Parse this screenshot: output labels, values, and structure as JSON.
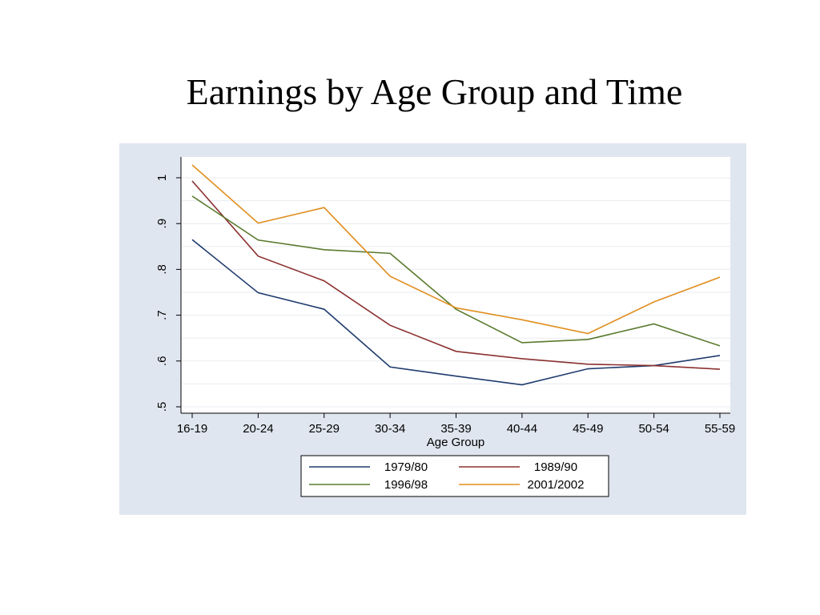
{
  "slide": {
    "title": "Earnings by Age Group and Time"
  },
  "colors": {
    "background": "#e0e6ef",
    "plot_background": "#ffffff",
    "gridline": "#e8ebf0"
  },
  "chart_data": {
    "type": "line",
    "title": "",
    "xlabel": "Age Group",
    "ylabel": "",
    "categories": [
      "16-19",
      "20-24",
      "25-29",
      "30-34",
      "35-39",
      "40-44",
      "45-49",
      "50-54",
      "55-59"
    ],
    "ylim": [
      0.5,
      1.0
    ],
    "yticks": [
      0.5,
      0.6,
      0.7,
      0.8,
      0.9,
      1.0
    ],
    "ytick_labels": [
      ".5",
      ".6",
      ".7",
      ".8",
      ".9",
      "1"
    ],
    "grid": true,
    "legend_position": "bottom",
    "series": [
      {
        "name": "1979/80",
        "color": "#1f3b6e",
        "values": [
          0.865,
          0.749,
          0.713,
          0.587,
          0.567,
          0.548,
          0.583,
          0.59,
          0.612
        ]
      },
      {
        "name": "1989/90",
        "color": "#8b3030",
        "values": [
          0.993,
          0.829,
          0.775,
          0.678,
          0.621,
          0.605,
          0.593,
          0.59,
          0.582
        ]
      },
      {
        "name": "1996/98",
        "color": "#5a7a2e",
        "values": [
          0.96,
          0.864,
          0.843,
          0.835,
          0.713,
          0.64,
          0.647,
          0.681,
          0.633
        ]
      },
      {
        "name": "2001/2002",
        "color": "#e08e1e",
        "values": [
          1.028,
          0.901,
          0.935,
          0.785,
          0.716,
          0.69,
          0.66,
          0.729,
          0.783
        ]
      }
    ]
  }
}
